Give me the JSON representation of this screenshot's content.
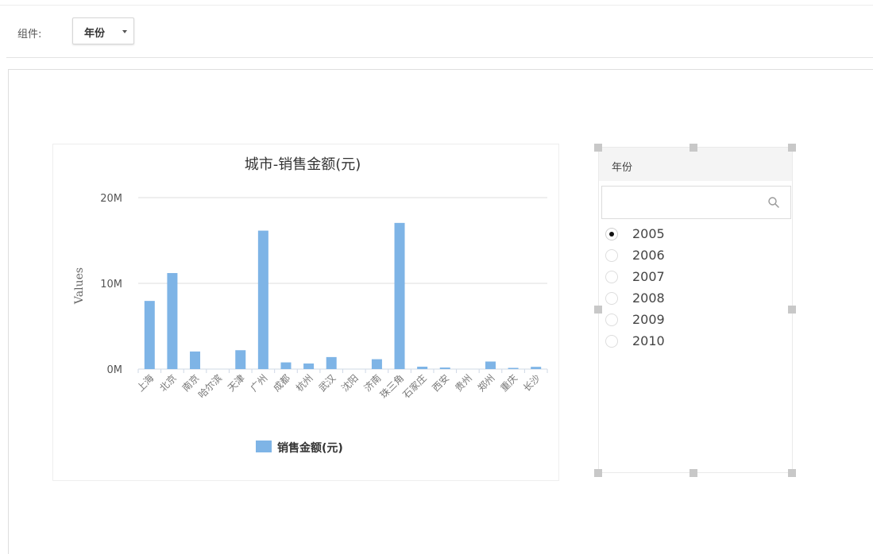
{
  "toolbar": {
    "component_label": "组件:",
    "component_value": "年份"
  },
  "chart_data": {
    "type": "bar",
    "title": "城市-销售金额(元)",
    "xlabel": "",
    "ylabel": "Values",
    "ylim": [
      0,
      20000000
    ],
    "y_ticks": [
      "0M",
      "10M",
      "20M"
    ],
    "grid": true,
    "legend_position": "bottom",
    "categories": [
      "上海",
      "北京",
      "南京",
      "哈尔滨",
      "天津",
      "广州",
      "成都",
      "杭州",
      "武汉",
      "沈阳",
      "济南",
      "珠三角",
      "石家庄",
      "西安",
      "贵州",
      "郑州",
      "重庆",
      "长沙"
    ],
    "series": [
      {
        "name": "销售金额(元)",
        "color": "#7eb4e6",
        "values": [
          7950000,
          11200000,
          2050000,
          0,
          2200000,
          16150000,
          780000,
          650000,
          1400000,
          0,
          1150000,
          17050000,
          280000,
          180000,
          0,
          880000,
          140000,
          260000
        ]
      }
    ]
  },
  "year_filter": {
    "title": "年份",
    "search_placeholder": "",
    "selected": "2005",
    "options": [
      "2005",
      "2006",
      "2007",
      "2008",
      "2009",
      "2010"
    ]
  },
  "colors": {
    "bar": "#7eb4e6",
    "grid": "#dcdcdc",
    "handle": "#c8c8c8"
  }
}
